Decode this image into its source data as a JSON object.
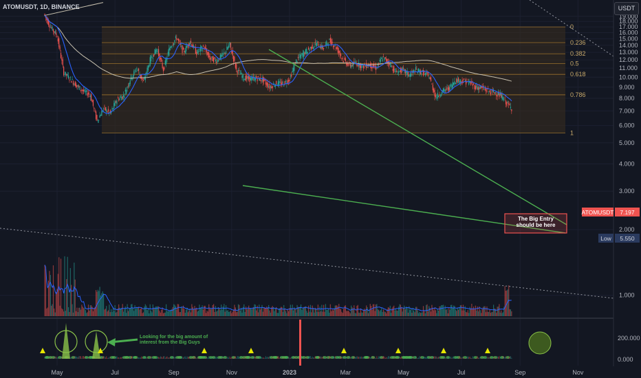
{
  "header": {
    "symbol_label": "ATOMUSDT, 1D, BINANCE",
    "currency_button": "USDT"
  },
  "colors": {
    "background": "#131722",
    "candle_up": "#26a69a",
    "candle_down": "#ef5350",
    "fib_zone": "#3a2e1f",
    "fib_line": "#b8862f",
    "wedge": "#4caf50",
    "fast_ma": "#2962ff",
    "slow_ma": "#c9c2b0",
    "entry_box": "#ef5350",
    "last_price": "#ef5350",
    "low_badge": "#2a3a5e",
    "osc_circle": "#3d5a1f"
  },
  "chart_data": {
    "type": "candlestick",
    "price_scale": "log",
    "y_ticks": [
      "19.000",
      "18.000",
      "17.000",
      "16.000",
      "15.000",
      "14.000",
      "13.000",
      "12.000",
      "11.000",
      "10.000",
      "9.000",
      "8.000",
      "7.000",
      "6.000",
      "5.000",
      "4.000",
      "3.000",
      "2.000",
      "1.000"
    ],
    "ylim": [
      0.85,
      21
    ],
    "x_ticks": [
      "May",
      "Jul",
      "Sep",
      "Nov",
      "2023",
      "Mar",
      "May",
      "Jul",
      "Sep",
      "Nov"
    ],
    "fib_levels": [
      {
        "label": "0",
        "value": 17.0
      },
      {
        "label": "0.236",
        "value": 14.4
      },
      {
        "label": "0.382",
        "value": 12.8
      },
      {
        "label": "0.5",
        "value": 11.55
      },
      {
        "label": "0.618",
        "value": 10.3
      },
      {
        "label": "0.786",
        "value": 8.3
      },
      {
        "label": "1",
        "value": 5.55
      }
    ],
    "price_path": [
      [
        "2022-04-18",
        19.5
      ],
      [
        "2022-04-25",
        17.0
      ],
      [
        "2022-05-02",
        15.5
      ],
      [
        "2022-05-09",
        10.5
      ],
      [
        "2022-05-16",
        9.8
      ],
      [
        "2022-05-23",
        9.1
      ],
      [
        "2022-05-30",
        8.6
      ],
      [
        "2022-06-06",
        8.3
      ],
      [
        "2022-06-13",
        6.3
      ],
      [
        "2022-06-20",
        7.2
      ],
      [
        "2022-06-27",
        6.8
      ],
      [
        "2022-07-04",
        7.9
      ],
      [
        "2022-07-11",
        8.2
      ],
      [
        "2022-07-18",
        9.8
      ],
      [
        "2022-07-25",
        11.0
      ],
      [
        "2022-08-01",
        9.5
      ],
      [
        "2022-08-08",
        12.0
      ],
      [
        "2022-08-15",
        13.5
      ],
      [
        "2022-08-22",
        10.8
      ],
      [
        "2022-08-29",
        13.8
      ],
      [
        "2022-09-05",
        15.2
      ],
      [
        "2022-09-12",
        13.0
      ],
      [
        "2022-09-19",
        14.6
      ],
      [
        "2022-09-26",
        12.9
      ],
      [
        "2022-10-03",
        13.8
      ],
      [
        "2022-10-10",
        12.2
      ],
      [
        "2022-10-17",
        11.9
      ],
      [
        "2022-10-24",
        12.7
      ],
      [
        "2022-10-31",
        14.1
      ],
      [
        "2022-11-07",
        10.8
      ],
      [
        "2022-11-14",
        10.0
      ],
      [
        "2022-11-21",
        9.8
      ],
      [
        "2022-11-28",
        9.9
      ],
      [
        "2022-12-05",
        9.7
      ],
      [
        "2022-12-12",
        9.0
      ],
      [
        "2022-12-19",
        9.4
      ],
      [
        "2022-12-26",
        9.3
      ],
      [
        "2023-01-02",
        9.8
      ],
      [
        "2023-01-09",
        11.9
      ],
      [
        "2023-01-16",
        12.8
      ],
      [
        "2023-01-23",
        13.5
      ],
      [
        "2023-01-30",
        14.3
      ],
      [
        "2023-02-06",
        13.6
      ],
      [
        "2023-02-13",
        14.7
      ],
      [
        "2023-02-20",
        13.7
      ],
      [
        "2023-02-27",
        12.1
      ],
      [
        "2023-03-06",
        11.3
      ],
      [
        "2023-03-13",
        11.6
      ],
      [
        "2023-03-20",
        11.2
      ],
      [
        "2023-03-27",
        11.4
      ],
      [
        "2023-04-03",
        11.0
      ],
      [
        "2023-04-10",
        12.3
      ],
      [
        "2023-04-17",
        11.6
      ],
      [
        "2023-04-24",
        10.5
      ],
      [
        "2023-05-01",
        10.8
      ],
      [
        "2023-05-08",
        10.2
      ],
      [
        "2023-05-15",
        10.8
      ],
      [
        "2023-05-22",
        10.5
      ],
      [
        "2023-05-29",
        10.1
      ],
      [
        "2023-06-05",
        8.1
      ],
      [
        "2023-06-12",
        8.6
      ],
      [
        "2023-06-19",
        8.9
      ],
      [
        "2023-06-26",
        9.7
      ],
      [
        "2023-07-03",
        9.6
      ],
      [
        "2023-07-10",
        9.5
      ],
      [
        "2023-07-17",
        9.0
      ],
      [
        "2023-07-24",
        8.9
      ],
      [
        "2023-07-31",
        8.6
      ],
      [
        "2023-08-07",
        8.5
      ],
      [
        "2023-08-14",
        8.1
      ],
      [
        "2023-08-21",
        7.4
      ],
      [
        "2023-08-24",
        7.2
      ]
    ],
    "last_price": {
      "label": "ATOMUSDT",
      "value": "7.197"
    },
    "low_marker": {
      "label": "Low",
      "value": "5.550"
    },
    "oscillator": {
      "y_ticks": [
        "200.000",
        "0.000"
      ]
    }
  },
  "annotations": {
    "entry_note_line1": "The Big Entry",
    "entry_note_line2": "should be here",
    "big_guys_line1": "Looking for the big amount of",
    "big_guys_line2": "interest from the Big Guys"
  }
}
